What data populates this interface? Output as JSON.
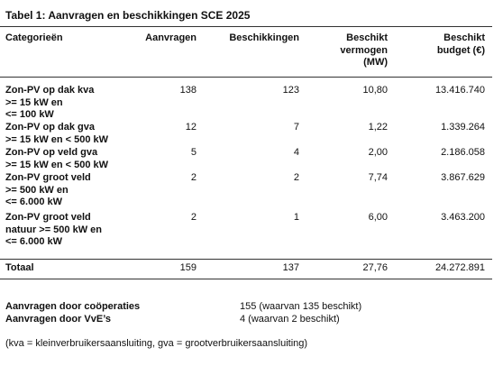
{
  "title": "Tabel 1: Aanvragen en beschikkingen SCE 2025",
  "table": {
    "header": [
      "Categorieën",
      "Aanvragen",
      "Beschikkingen",
      [
        "Beschikt",
        "vermogen",
        "(MW)"
      ],
      [
        "Beschikt",
        "budget (€)"
      ]
    ],
    "rows": [
      [
        [
          "Zon-PV op dak kva",
          ">= 15 kW en",
          "<= 100 kW"
        ],
        "138",
        "123",
        "10,80",
        "13.416.740"
      ],
      [
        [
          "Zon-PV op dak gva",
          ">= 15 kW en < 500 kW"
        ],
        "12",
        "7",
        "1,22",
        "1.339.264"
      ],
      [
        [
          "Zon-PV op veld gva",
          ">= 15 kW en < 500 kW"
        ],
        "5",
        "4",
        "2,00",
        "2.186.058"
      ],
      [
        [
          "Zon-PV groot veld",
          ">= 500 kW en",
          "<= 6.000 kW"
        ],
        "2",
        "2",
        "7,74",
        "3.867.629"
      ],
      [
        [
          "Zon-PV groot veld",
          "natuur >= 500 kW en",
          "<= 6.000 kW"
        ],
        "2",
        "1",
        "6,00",
        "3.463.200"
      ]
    ],
    "total": [
      "Totaal",
      "159",
      "137",
      "27,76",
      "24.272.891"
    ]
  },
  "footer": [
    [
      "Aanvragen door coöperaties",
      "155 (waarvan 135 beschikt)"
    ],
    [
      "Aanvragen door VvE’s",
      "4 (waarvan 2 beschikt)"
    ]
  ],
  "note": "(kva = kleinverbruikersaansluiting, gva = grootverbruikersaansluiting)"
}
